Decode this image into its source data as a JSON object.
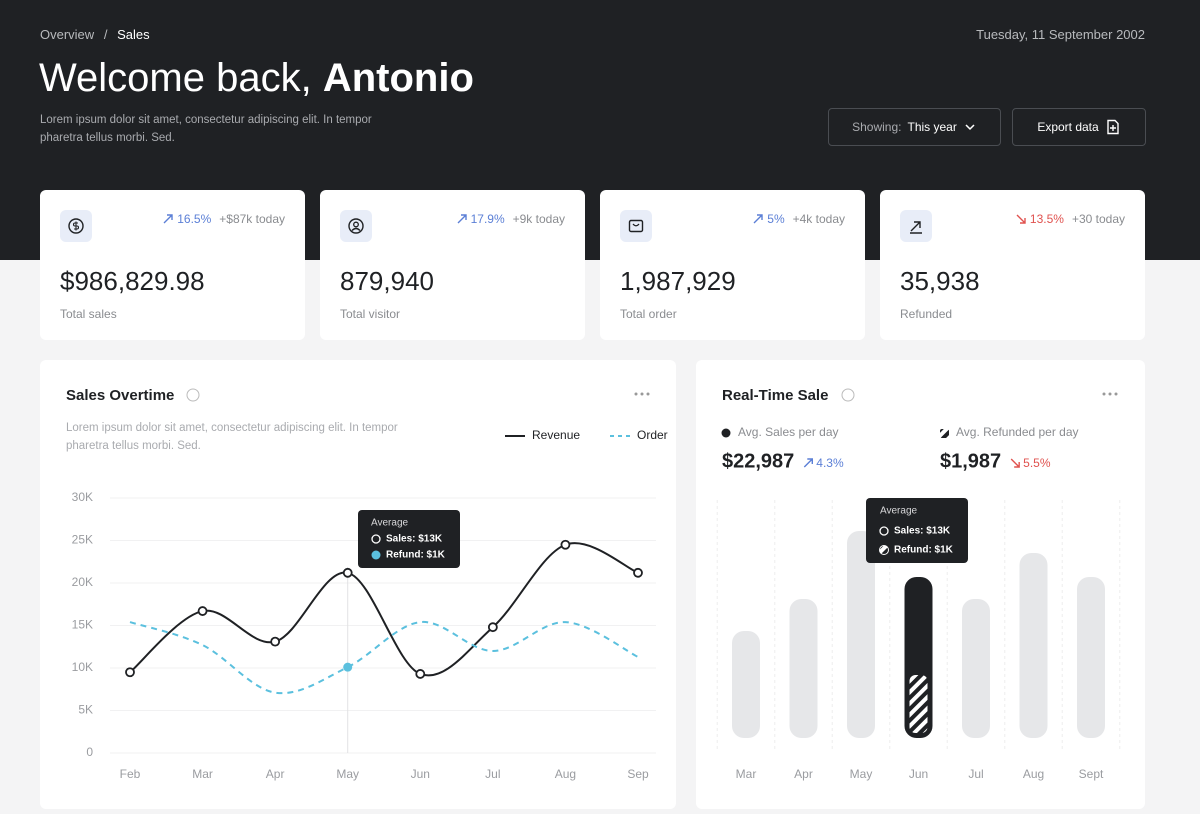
{
  "header": {
    "breadcrumb": [
      "Overview",
      "Sales"
    ],
    "date": "Tuesday, 11 September 2002",
    "greeting": "Welcome back,",
    "name": "Antonio",
    "description": "Lorem ipsum dolor sit amet, consectetur adipiscing elit. In tempor pharetra tellus morbi. Sed.",
    "filter_label": "Showing:",
    "filter_value": "This year",
    "export": "Export data"
  },
  "stats": [
    {
      "change": "16.5%",
      "delta": "+$87k today",
      "value": "$986,829.98",
      "label": "Total sales",
      "trend": "up"
    },
    {
      "change": "17.9%",
      "delta": "+9k today",
      "value": "879,940",
      "label": "Total visitor",
      "trend": "up"
    },
    {
      "change": "5%",
      "delta": "+4k today",
      "value": "1,987,929",
      "label": "Total order",
      "trend": "up"
    },
    {
      "change": "13.5%",
      "delta": "+30 today",
      "value": "35,938",
      "label": "Refunded",
      "trend": "down"
    }
  ],
  "sales": {
    "title": "Sales Overtime",
    "description": "Lorem ipsum dolor sit amet, consectetur adipiscing elit. In tempor pharetra tellus morbi. Sed.",
    "chart_data": {
      "type": "line",
      "categories": [
        "Feb",
        "Mar",
        "Apr",
        "May",
        "Jun",
        "Jul",
        "Aug",
        "Sep"
      ],
      "series": [
        {
          "name": "Revenue",
          "color": "#1f2124",
          "values": [
            9500,
            16700,
            13100,
            21200,
            9300,
            14800,
            24500,
            21200
          ]
        },
        {
          "name": "Order",
          "color": "#5bc0de",
          "dashed": true,
          "values": [
            15400,
            12700,
            7100,
            10100,
            15400,
            12000,
            15400,
            11300
          ]
        }
      ],
      "ylim": [
        0,
        30000
      ],
      "yticks": [
        0,
        {
          "value": 5000,
          "label": "5K"
        },
        {
          "value": 10000,
          "label": "10K"
        },
        {
          "value": 15000,
          "label": "15K"
        },
        {
          "value": 20000,
          "label": "20K"
        },
        {
          "value": 25000,
          "label": "25K"
        },
        {
          "value": 30000,
          "label": "30K"
        }
      ],
      "grid": true,
      "tooltip": {
        "category": "May",
        "title": "Average",
        "lines": [
          "Sales: $13K",
          "Refund: $1K"
        ]
      }
    }
  },
  "realtime": {
    "title": "Real-Time Sale",
    "stats": [
      {
        "label": "Avg. Sales per day",
        "value": "$22,987",
        "change": "4.3%",
        "trend": "up"
      },
      {
        "label": "Avg. Refunded per day",
        "value": "$1,987",
        "change": "5.5%",
        "trend": "down"
      }
    ],
    "chart_data": {
      "type": "bar",
      "categories": [
        "Mar",
        "Apr",
        "May",
        "Jun",
        "Jul",
        "Aug",
        "Sept"
      ],
      "values": [
        107,
        139,
        207,
        161,
        139,
        185,
        161
      ],
      "color": "#e6e7e9",
      "highlight_category": "Jun",
      "highlight_color": "#1f2124",
      "highlight_refund": 61,
      "tooltip": {
        "title": "Average",
        "lines": [
          "Sales: $13K",
          "Refund: $1K"
        ]
      }
    }
  }
}
